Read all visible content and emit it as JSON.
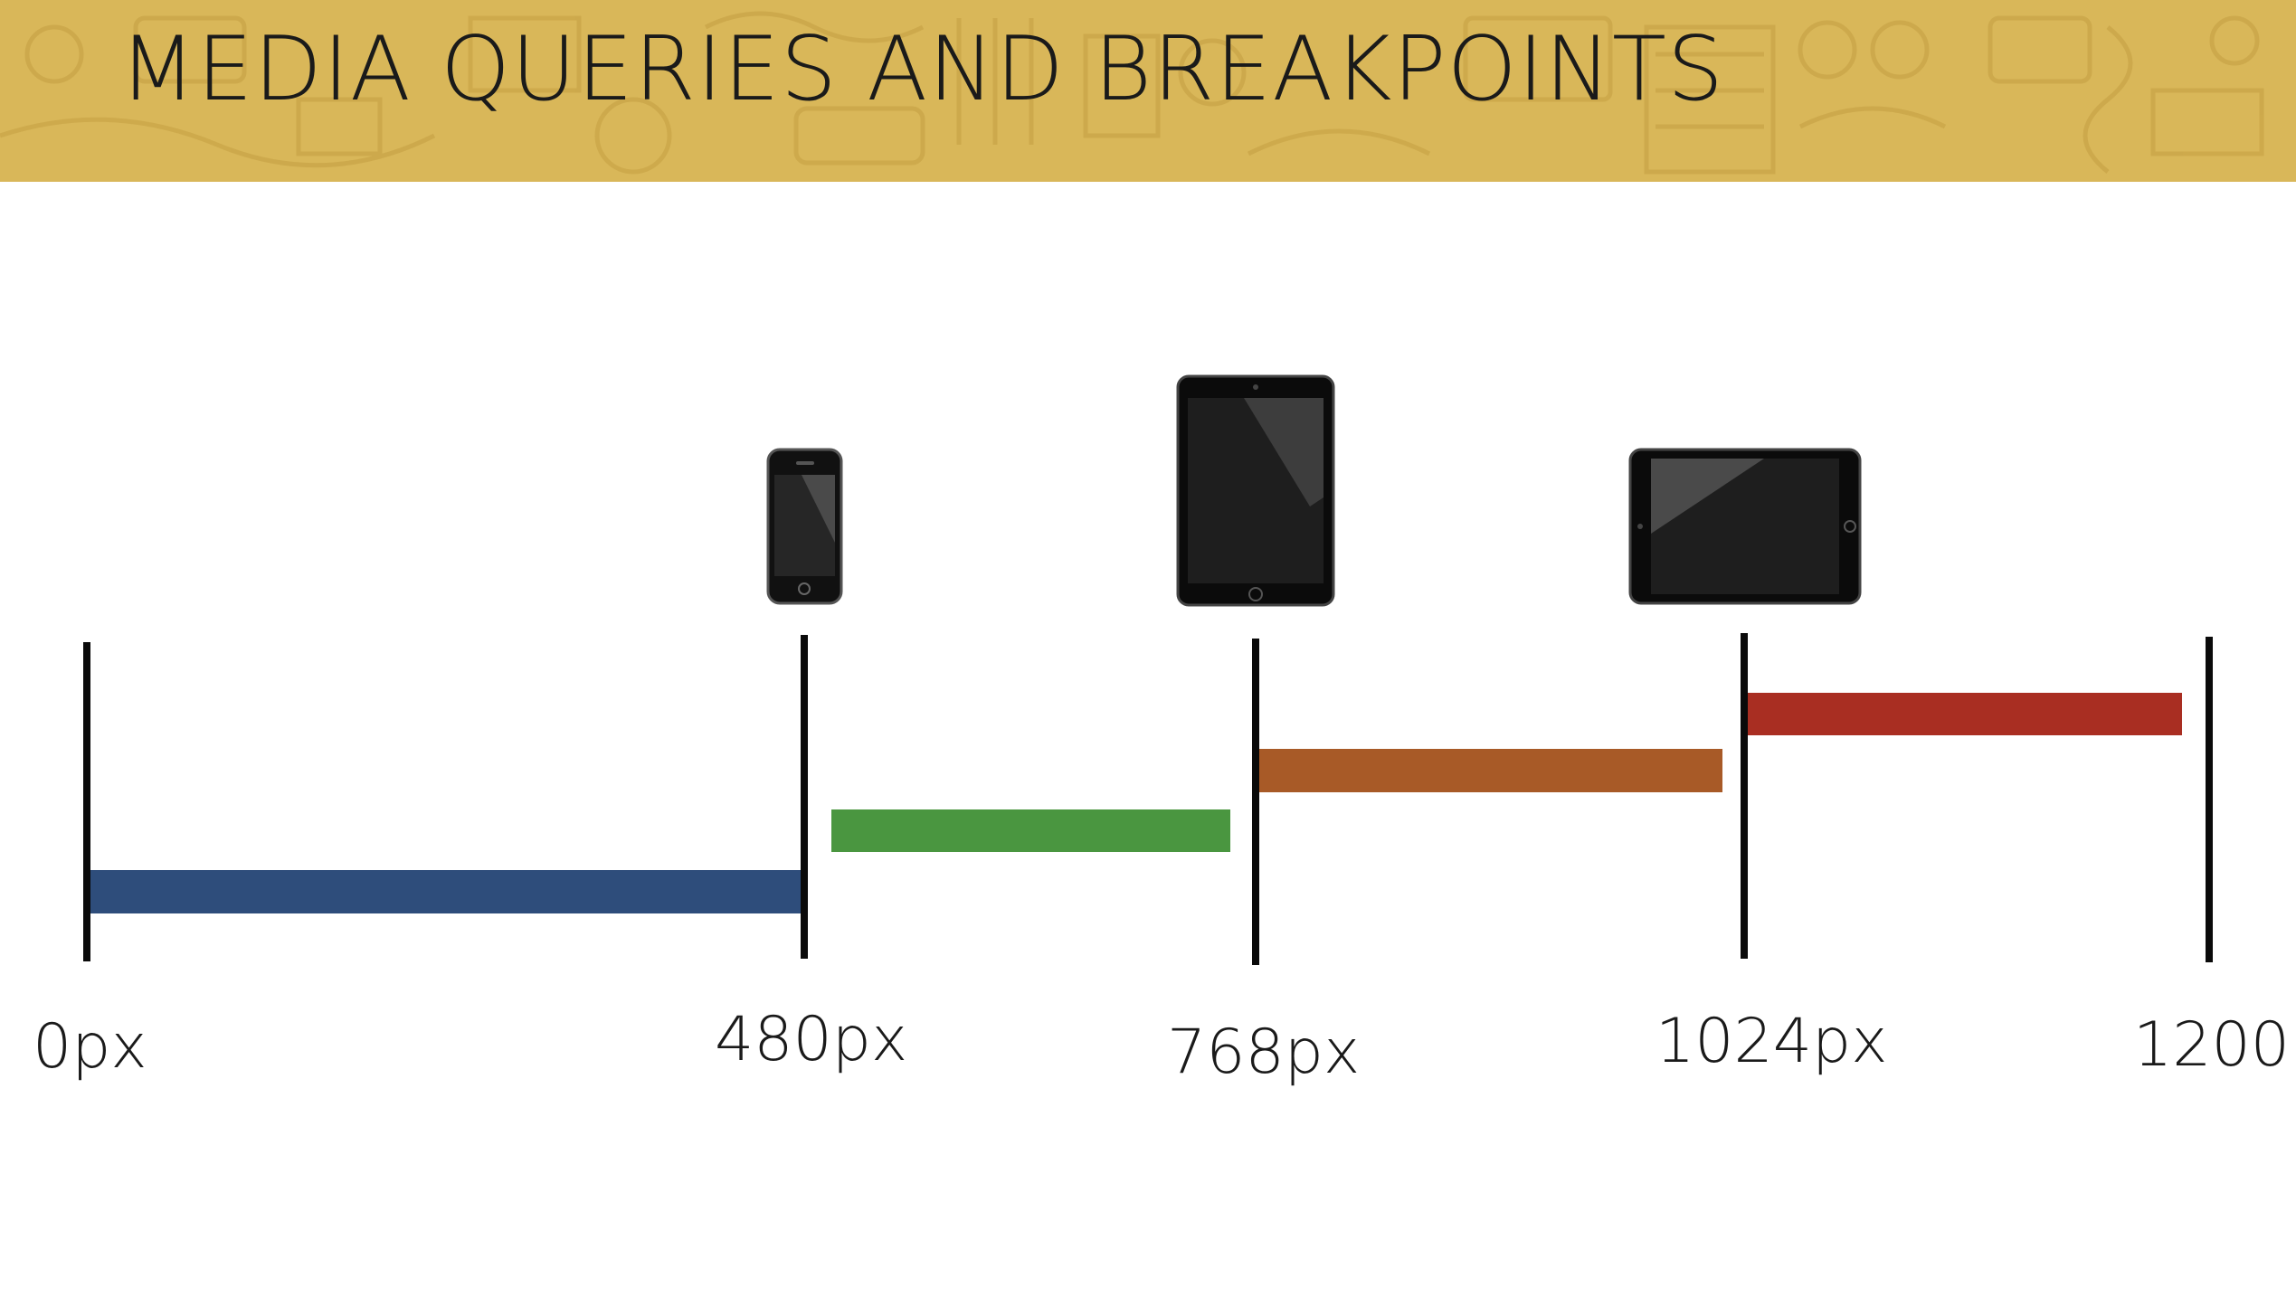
{
  "header": {
    "title": "MEDIA QUERIES AND BREAKPOINTS",
    "background_color": "#d9b759"
  },
  "breakpoints": [
    {
      "label": "0px"
    },
    {
      "label": "480px"
    },
    {
      "label": "768px"
    },
    {
      "label": "1024px"
    },
    {
      "label": "1200"
    }
  ],
  "ranges": [
    {
      "from": 0,
      "to": 480,
      "color": "#2e4d7b"
    },
    {
      "from": 480,
      "to": 768,
      "color": "#4a9640"
    },
    {
      "from": 768,
      "to": 1024,
      "color": "#a85a27"
    },
    {
      "from": 1024,
      "to": 1200,
      "color": "#a92e22"
    }
  ],
  "devices": [
    {
      "icon": "smartphone-icon",
      "at": 480
    },
    {
      "icon": "tablet-portrait-icon",
      "at": 768
    },
    {
      "icon": "tablet-landscape-icon",
      "at": 1024
    }
  ]
}
